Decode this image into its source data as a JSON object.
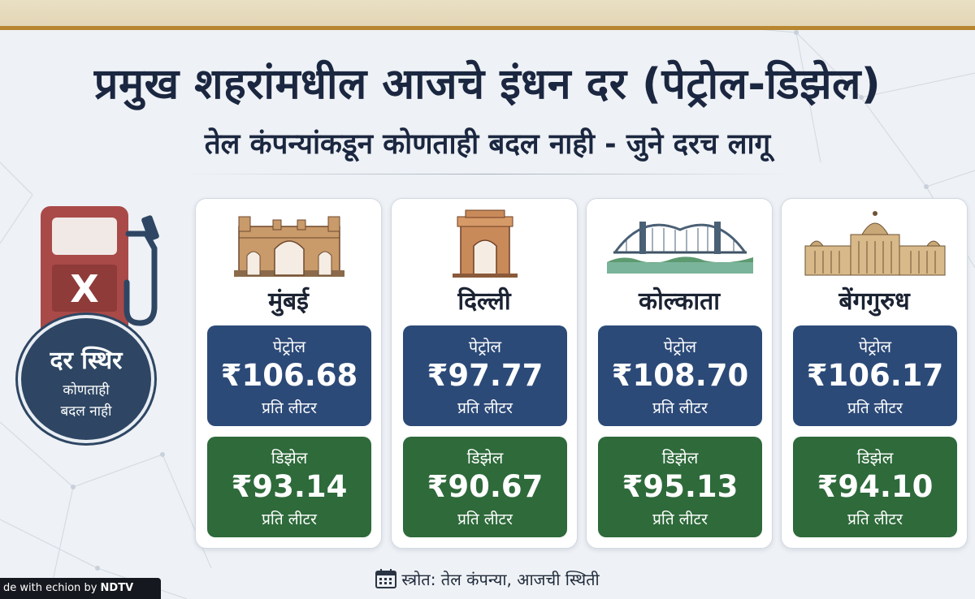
{
  "header": {
    "title": "प्रमुख शहरांमधील आजचे इंधन दर (पेट्रोल-डिझेल)",
    "subtitle": "तेल कंपन्यांकडून कोणताही बदल नाही - जुने दरच लागू"
  },
  "pump": {
    "symbol": "X",
    "status_line1": "दर स्थिर",
    "status_line2": "कोणताही",
    "status_line3": "बदल नाही"
  },
  "cities": [
    {
      "name": "मुंबई",
      "petrol_label": "पेट्रोल",
      "petrol_price": "₹106.68",
      "petrol_unit": "प्रति लीटर",
      "diesel_label": "डिझेल",
      "diesel_price": "₹93.14",
      "diesel_unit": "प्रति लीटर"
    },
    {
      "name": "दिल्ली",
      "petrol_label": "पेट्रोल",
      "petrol_price": "₹97.77",
      "petrol_unit": "प्रति लीटर",
      "diesel_label": "डिझेल",
      "diesel_price": "₹90.67",
      "diesel_unit": "प्रति लीटर"
    },
    {
      "name": "कोल्काता",
      "petrol_label": "पेट्रोल",
      "petrol_price": "₹108.70",
      "petrol_unit": "प्रति लीटर",
      "diesel_label": "डिझेल",
      "diesel_price": "₹95.13",
      "diesel_unit": "प्रति लीटर"
    },
    {
      "name": "बेंगगुरुध",
      "petrol_label": "पेट्रोल",
      "petrol_price": "₹106.17",
      "petrol_unit": "प्रति लीटर",
      "diesel_label": "डिझेल",
      "diesel_price": "₹94.10",
      "diesel_unit": "प्रति लीटर"
    }
  ],
  "footer": {
    "source": "स्त्रोत: तेल कंपन्या, आजची स्थिती",
    "credit_prefix": "de with ",
    "credit_brand": "echion",
    "credit_by": " by ",
    "credit_network": "NDTV"
  },
  "colors": {
    "petrol_box": "#2c4a78",
    "diesel_box": "#2e6a3a",
    "pump_red": "#a94a48",
    "badge_navy": "#2e4663",
    "accent_gold": "#b8862f"
  },
  "icons": [
    "fuel-pump-icon",
    "calendar-icon",
    "gateway-of-india-icon",
    "india-gate-icon",
    "howrah-bridge-icon",
    "vidhana-soudha-icon"
  ]
}
